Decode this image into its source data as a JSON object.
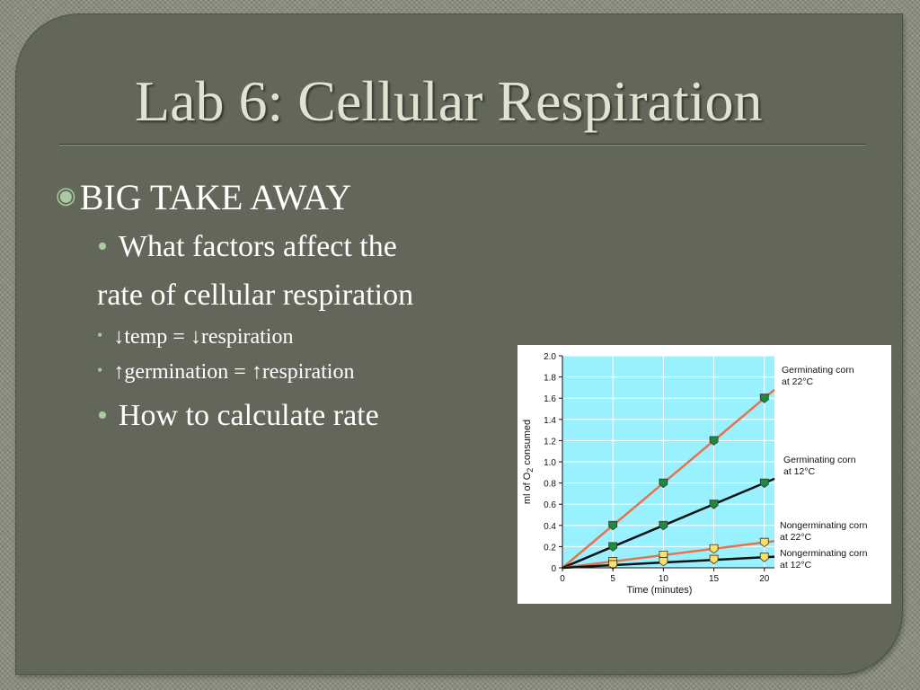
{
  "slide": {
    "title": "Lab 6: Cellular Respiration",
    "bullets": {
      "main": "BIG TAKE AWAY",
      "factors_line1": "What factors affect the",
      "factors_line2": "rate of cellular respiration",
      "temp": "↓temp = ↓respiration",
      "germination": "↑germination = ↑respiration",
      "calculate": "How to calculate rate"
    }
  },
  "colors": {
    "plot_background": "#99f0ff",
    "orange_line": "#e8734a",
    "black_line": "#111111",
    "green_marker": "#1f8a3b",
    "yellow_marker": "#ffe066"
  },
  "chart_data": {
    "type": "line",
    "title": "",
    "xlabel": "Time (minutes)",
    "ylabel_parts": [
      "ml of O",
      "2",
      " consumed"
    ],
    "xlim": [
      0,
      21
    ],
    "ylim": [
      0,
      2.0
    ],
    "x_ticks": [
      "0",
      "5",
      "10",
      "15",
      "20"
    ],
    "y_ticks": [
      "0",
      "0.2",
      "0.4",
      "0.6",
      "0.8",
      "1.0",
      "1.2",
      "1.4",
      "1.6",
      "1.8",
      "2.0"
    ],
    "grid": true,
    "series": [
      {
        "label_lines": [
          "Germinating corn",
          "at 22°C"
        ],
        "line_color": "#e8734a",
        "marker_color": "#1f8a3b",
        "x": [
          5,
          10,
          15,
          20
        ],
        "values": [
          0.4,
          0.8,
          1.2,
          1.6
        ]
      },
      {
        "label_lines": [
          "Germinating corn",
          "at 12°C"
        ],
        "line_color": "#111111",
        "marker_color": "#1f8a3b",
        "x": [
          5,
          10,
          15,
          20
        ],
        "values": [
          0.2,
          0.4,
          0.6,
          0.8
        ]
      },
      {
        "label_lines": [
          "Nongerminating corn",
          "at 22°C"
        ],
        "line_color": "#e8734a",
        "marker_color": "#ffe066",
        "x": [
          5,
          10,
          15,
          20
        ],
        "values": [
          0.06,
          0.12,
          0.18,
          0.24
        ]
      },
      {
        "label_lines": [
          "Nongerminating corn",
          "at 12°C"
        ],
        "line_color": "#111111",
        "marker_color": "#ffe066",
        "x": [
          5,
          10,
          15,
          20
        ],
        "values": [
          0.03,
          0.06,
          0.08,
          0.1
        ]
      }
    ]
  }
}
